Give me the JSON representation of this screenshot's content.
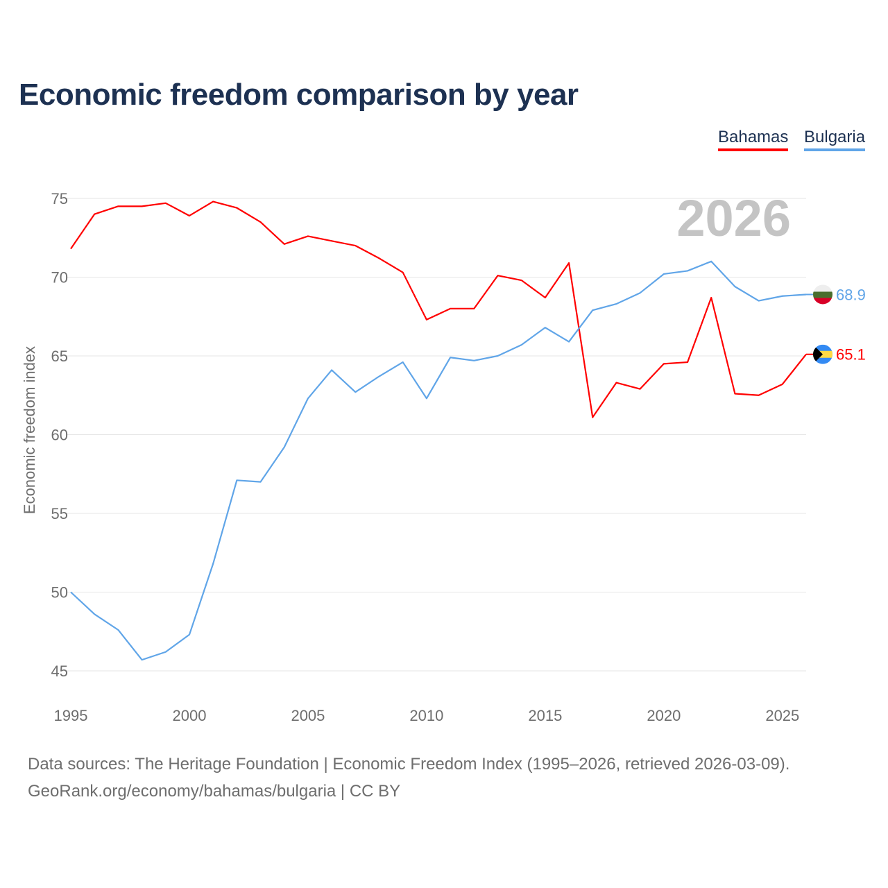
{
  "chart_data": {
    "type": "line",
    "title": "Economic freedom comparison by year",
    "xlabel": "",
    "ylabel": "Economic freedom index",
    "year_watermark": "2026",
    "x": [
      1995,
      1996,
      1997,
      1998,
      1999,
      2000,
      2001,
      2002,
      2003,
      2004,
      2005,
      2006,
      2007,
      2008,
      2009,
      2010,
      2011,
      2012,
      2013,
      2014,
      2015,
      2016,
      2017,
      2018,
      2019,
      2020,
      2021,
      2022,
      2023,
      2024,
      2025,
      2026
    ],
    "xlim": [
      1995,
      2026
    ],
    "ylim": [
      45,
      77
    ],
    "x_ticks": [
      "1995",
      "2000",
      "2005",
      "2010",
      "2015",
      "2020",
      "2025"
    ],
    "y_ticks": [
      "45",
      "50",
      "55",
      "60",
      "65",
      "70",
      "75"
    ],
    "grid": true,
    "legend_position": "top-right",
    "series": [
      {
        "name": "Bahamas",
        "color": "#ff0000",
        "end_label": "65.1",
        "flag": "bahamas-flag",
        "values": [
          71.8,
          74.0,
          74.5,
          74.5,
          74.7,
          73.9,
          74.8,
          74.4,
          73.5,
          72.1,
          72.6,
          72.3,
          72.0,
          71.2,
          70.3,
          67.3,
          68.0,
          68.0,
          70.1,
          69.8,
          68.7,
          70.9,
          61.1,
          63.3,
          62.9,
          64.5,
          64.6,
          68.7,
          62.6,
          62.5,
          63.2,
          65.1
        ]
      },
      {
        "name": "Bulgaria",
        "color": "#60a5e8",
        "end_label": "68.9",
        "flag": "bulgaria-flag",
        "values": [
          50.0,
          48.6,
          47.6,
          45.7,
          46.2,
          47.3,
          51.8,
          57.1,
          57.0,
          59.2,
          62.3,
          64.1,
          62.7,
          63.7,
          64.6,
          62.3,
          64.9,
          64.7,
          65.0,
          65.7,
          66.8,
          65.9,
          67.9,
          68.3,
          69.0,
          70.2,
          70.4,
          71.0,
          69.4,
          68.5,
          68.8,
          68.9
        ]
      }
    ]
  },
  "footer": {
    "line1": "Data sources: The Heritage Foundation | Economic Freedom Index (1995–2026, retrieved 2026-03-09).",
    "line2": "GeoRank.org/economy/bahamas/bulgaria | CC BY"
  }
}
